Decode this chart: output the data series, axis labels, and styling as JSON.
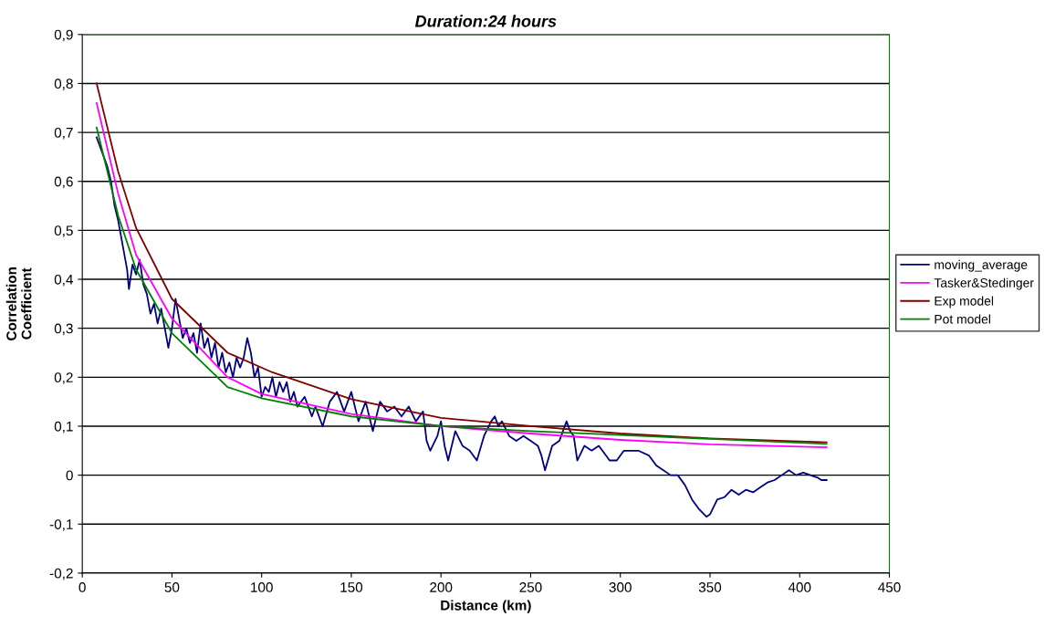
{
  "chart_data": {
    "type": "line",
    "title": "Duration:24 hours",
    "xlabel": "Distance (km)",
    "ylabel": "Correlation\nCoefficient",
    "xlim": [
      0,
      450
    ],
    "xticks": [
      0,
      50,
      100,
      150,
      200,
      250,
      300,
      350,
      400,
      450
    ],
    "ylim": [
      -0.2,
      0.9
    ],
    "yticks": [
      {
        "value": -0.2,
        "label": "-0,2"
      },
      {
        "value": -0.1,
        "label": "-0,1"
      },
      {
        "value": 0,
        "label": "0"
      },
      {
        "value": 0.1,
        "label": "0,1"
      },
      {
        "value": 0.2,
        "label": "0,2"
      },
      {
        "value": 0.3,
        "label": "0,3"
      },
      {
        "value": 0.4,
        "label": "0,4"
      },
      {
        "value": 0.5,
        "label": "0,5"
      },
      {
        "value": 0.6,
        "label": "0,6"
      },
      {
        "value": 0.7,
        "label": "0,7"
      },
      {
        "value": 0.8,
        "label": "0,8"
      },
      {
        "value": 0.9,
        "label": "0,9"
      }
    ],
    "grid": "y",
    "legend": "right",
    "marker": "none",
    "line_style": "solid",
    "series": [
      {
        "name": "moving_average",
        "color": "#000080",
        "x": [
          8,
          10,
          12,
          14,
          16,
          18,
          20,
          22,
          24,
          25,
          26,
          28,
          30,
          32,
          34,
          36,
          38,
          40,
          42,
          44,
          46,
          48,
          50,
          52,
          54,
          56,
          58,
          60,
          62,
          64,
          66,
          68,
          70,
          72,
          74,
          76,
          78,
          80,
          82,
          84,
          86,
          88,
          90,
          92,
          94,
          96,
          98,
          100,
          102,
          104,
          106,
          108,
          110,
          112,
          114,
          116,
          118,
          120,
          124,
          128,
          130,
          134,
          138,
          142,
          146,
          150,
          154,
          158,
          160,
          162,
          166,
          170,
          174,
          178,
          182,
          186,
          190,
          192,
          194,
          198,
          200,
          202,
          204,
          208,
          212,
          216,
          220,
          224,
          228,
          230,
          232,
          234,
          238,
          242,
          246,
          250,
          254,
          256,
          258,
          262,
          266,
          270,
          272,
          274,
          276,
          280,
          284,
          288,
          290,
          294,
          298,
          302,
          306,
          310,
          316,
          320,
          324,
          328,
          332,
          336,
          340,
          344,
          348,
          350,
          354,
          358,
          362,
          366,
          370,
          374,
          378,
          382,
          386,
          390,
          394,
          398,
          402,
          406,
          410,
          412,
          415
        ],
        "values": [
          0.69,
          0.67,
          0.65,
          0.63,
          0.6,
          0.55,
          0.52,
          0.48,
          0.44,
          0.42,
          0.38,
          0.43,
          0.41,
          0.44,
          0.39,
          0.37,
          0.33,
          0.35,
          0.31,
          0.34,
          0.3,
          0.26,
          0.3,
          0.36,
          0.32,
          0.28,
          0.3,
          0.27,
          0.29,
          0.25,
          0.31,
          0.26,
          0.28,
          0.24,
          0.27,
          0.22,
          0.25,
          0.21,
          0.23,
          0.2,
          0.24,
          0.22,
          0.24,
          0.28,
          0.25,
          0.2,
          0.22,
          0.16,
          0.18,
          0.17,
          0.2,
          0.16,
          0.19,
          0.17,
          0.19,
          0.15,
          0.17,
          0.14,
          0.16,
          0.12,
          0.14,
          0.1,
          0.15,
          0.17,
          0.13,
          0.17,
          0.11,
          0.15,
          0.12,
          0.09,
          0.15,
          0.13,
          0.14,
          0.12,
          0.14,
          0.11,
          0.13,
          0.07,
          0.05,
          0.08,
          0.11,
          0.06,
          0.03,
          0.09,
          0.06,
          0.05,
          0.03,
          0.08,
          0.11,
          0.12,
          0.1,
          0.11,
          0.08,
          0.07,
          0.08,
          0.07,
          0.06,
          0.04,
          0.01,
          0.06,
          0.07,
          0.11,
          0.09,
          0.08,
          0.03,
          0.06,
          0.05,
          0.06,
          0.05,
          0.03,
          0.03,
          0.05,
          0.05,
          0.05,
          0.04,
          0.02,
          0.01,
          0.0,
          0.0,
          -0.02,
          -0.05,
          -0.07,
          -0.085,
          -0.08,
          -0.05,
          -0.045,
          -0.03,
          -0.04,
          -0.03,
          -0.035,
          -0.025,
          -0.015,
          -0.01,
          0.0,
          0.01,
          0.0,
          0.005,
          0.0,
          -0.005,
          -0.01,
          -0.01
        ]
      },
      {
        "name": "Tasker&Stedinger",
        "color": "#ff00ff",
        "x": [
          8,
          20,
          30,
          50,
          81,
          100,
          150,
          200,
          250,
          300,
          350,
          415
        ],
        "values": [
          0.76,
          0.575,
          0.45,
          0.32,
          0.2,
          0.166,
          0.125,
          0.1,
          0.085,
          0.072,
          0.063,
          0.057
        ]
      },
      {
        "name": "Exp model",
        "color": "#800000",
        "x": [
          8,
          20,
          30,
          50,
          81,
          106,
          150,
          200,
          250,
          300,
          350,
          415
        ],
        "values": [
          0.8,
          0.62,
          0.505,
          0.36,
          0.25,
          0.21,
          0.155,
          0.117,
          0.1,
          0.085,
          0.075,
          0.067
        ]
      },
      {
        "name": "Pot model",
        "color": "#008000",
        "x": [
          8,
          20,
          30,
          50,
          81,
          100,
          150,
          200,
          250,
          300,
          350,
          415
        ],
        "values": [
          0.71,
          0.53,
          0.42,
          0.29,
          0.18,
          0.157,
          0.12,
          0.1,
          0.09,
          0.082,
          0.074,
          0.064
        ]
      }
    ]
  }
}
